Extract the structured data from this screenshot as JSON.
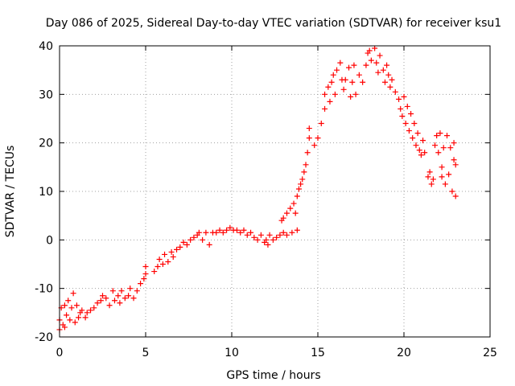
{
  "chart_data": {
    "type": "scatter",
    "title": "Day 086 of 2025, Sidereal Day-to-day VTEC variation (SDTVAR) for receiver ksu1",
    "xlabel": "GPS time / hours",
    "ylabel": "SDTVAR / TECUs",
    "xlim": [
      0,
      25
    ],
    "ylim": [
      -20,
      40
    ],
    "x_ticks": [
      0,
      5,
      10,
      15,
      20,
      25
    ],
    "y_ticks": [
      -20,
      -10,
      0,
      10,
      20,
      30,
      40
    ],
    "x_tick_labels": [
      "0",
      "5",
      "10",
      "15",
      "20",
      "25"
    ],
    "y_tick_labels": [
      "-20",
      "-10",
      "0",
      "10",
      "20",
      "30",
      "40"
    ],
    "grid": true,
    "marker": "+",
    "color": "#ff0000",
    "series": [
      {
        "name": "SDTVAR",
        "points": [
          [
            0.0,
            -16.5
          ],
          [
            0.0,
            -18.5
          ],
          [
            0.1,
            -14.0
          ],
          [
            0.2,
            -17.5
          ],
          [
            0.3,
            -13.5
          ],
          [
            0.3,
            -18.0
          ],
          [
            0.4,
            -15.5
          ],
          [
            0.5,
            -12.5
          ],
          [
            0.6,
            -16.5
          ],
          [
            0.7,
            -14.0
          ],
          [
            0.8,
            -11.0
          ],
          [
            0.9,
            -17.0
          ],
          [
            1.0,
            -13.5
          ],
          [
            1.1,
            -16.0
          ],
          [
            1.2,
            -15.0
          ],
          [
            1.3,
            -14.5
          ],
          [
            1.5,
            -16.0
          ],
          [
            1.6,
            -15.0
          ],
          [
            1.8,
            -14.5
          ],
          [
            2.0,
            -14.0
          ],
          [
            2.2,
            -13.0
          ],
          [
            2.4,
            -12.5
          ],
          [
            2.5,
            -11.5
          ],
          [
            2.7,
            -12.0
          ],
          [
            2.9,
            -13.5
          ],
          [
            3.1,
            -10.5
          ],
          [
            3.2,
            -12.5
          ],
          [
            3.4,
            -11.5
          ],
          [
            3.5,
            -13.0
          ],
          [
            3.6,
            -10.5
          ],
          [
            3.8,
            -12.0
          ],
          [
            4.0,
            -11.5
          ],
          [
            4.1,
            -10.0
          ],
          [
            4.3,
            -12.0
          ],
          [
            4.5,
            -10.5
          ],
          [
            4.7,
            -9.0
          ],
          [
            4.9,
            -8.0
          ],
          [
            5.0,
            -7.0
          ],
          [
            5.0,
            -5.5
          ],
          [
            5.5,
            -6.5
          ],
          [
            5.7,
            -5.5
          ],
          [
            5.8,
            -4.0
          ],
          [
            6.0,
            -5.0
          ],
          [
            6.1,
            -3.0
          ],
          [
            6.3,
            -4.5
          ],
          [
            6.5,
            -2.5
          ],
          [
            6.6,
            -3.5
          ],
          [
            6.8,
            -2.0
          ],
          [
            7.0,
            -1.5
          ],
          [
            7.2,
            -0.5
          ],
          [
            7.4,
            -1.0
          ],
          [
            7.6,
            0.0
          ],
          [
            7.8,
            0.5
          ],
          [
            8.0,
            1.0
          ],
          [
            8.1,
            1.5
          ],
          [
            8.3,
            0.0
          ],
          [
            8.5,
            1.5
          ],
          [
            8.7,
            -1.0
          ],
          [
            8.9,
            1.5
          ],
          [
            9.1,
            1.5
          ],
          [
            9.3,
            2.0
          ],
          [
            9.5,
            1.5
          ],
          [
            9.7,
            2.0
          ],
          [
            9.9,
            2.5
          ],
          [
            10.1,
            2.0
          ],
          [
            10.3,
            2.0
          ],
          [
            10.5,
            1.5
          ],
          [
            10.7,
            2.0
          ],
          [
            10.9,
            1.0
          ],
          [
            11.1,
            1.5
          ],
          [
            11.3,
            0.5
          ],
          [
            11.5,
            0.0
          ],
          [
            11.7,
            1.0
          ],
          [
            11.9,
            -0.5
          ],
          [
            12.0,
            0.0
          ],
          [
            12.1,
            -1.0
          ],
          [
            12.2,
            1.0
          ],
          [
            12.4,
            0.0
          ],
          [
            12.6,
            0.5
          ],
          [
            12.8,
            1.0
          ],
          [
            13.0,
            1.5
          ],
          [
            13.2,
            1.0
          ],
          [
            13.5,
            1.5
          ],
          [
            13.8,
            2.0
          ],
          [
            12.9,
            4.0
          ],
          [
            13.0,
            4.5
          ],
          [
            13.2,
            5.5
          ],
          [
            13.4,
            6.5
          ],
          [
            13.6,
            7.5
          ],
          [
            13.7,
            5.5
          ],
          [
            13.8,
            9.0
          ],
          [
            13.9,
            10.5
          ],
          [
            14.0,
            11.5
          ],
          [
            14.1,
            12.5
          ],
          [
            14.2,
            14.0
          ],
          [
            14.3,
            15.5
          ],
          [
            14.4,
            18.0
          ],
          [
            14.5,
            21.0
          ],
          [
            14.5,
            23.0
          ],
          [
            14.8,
            19.5
          ],
          [
            15.0,
            21.0
          ],
          [
            15.2,
            24.0
          ],
          [
            15.4,
            27.0
          ],
          [
            15.4,
            30.0
          ],
          [
            15.6,
            31.5
          ],
          [
            15.7,
            28.5
          ],
          [
            15.8,
            32.5
          ],
          [
            15.9,
            34.0
          ],
          [
            16.0,
            30.0
          ],
          [
            16.1,
            35.0
          ],
          [
            16.3,
            36.5
          ],
          [
            16.4,
            33.0
          ],
          [
            16.5,
            31.0
          ],
          [
            16.6,
            33.0
          ],
          [
            16.8,
            35.5
          ],
          [
            16.9,
            29.5
          ],
          [
            17.0,
            32.5
          ],
          [
            17.1,
            36.0
          ],
          [
            17.2,
            30.0
          ],
          [
            17.4,
            34.0
          ],
          [
            17.6,
            32.5
          ],
          [
            17.8,
            36.0
          ],
          [
            17.9,
            38.5
          ],
          [
            18.0,
            39.0
          ],
          [
            18.1,
            37.0
          ],
          [
            18.3,
            39.5
          ],
          [
            18.4,
            36.5
          ],
          [
            18.5,
            34.5
          ],
          [
            18.6,
            38.0
          ],
          [
            18.8,
            35.0
          ],
          [
            18.9,
            32.5
          ],
          [
            19.0,
            36.0
          ],
          [
            19.1,
            34.0
          ],
          [
            19.2,
            31.5
          ],
          [
            19.3,
            33.0
          ],
          [
            19.5,
            30.5
          ],
          [
            19.7,
            29.0
          ],
          [
            19.8,
            27.0
          ],
          [
            19.9,
            25.5
          ],
          [
            20.0,
            29.5
          ],
          [
            20.1,
            24.0
          ],
          [
            20.2,
            27.5
          ],
          [
            20.3,
            22.5
          ],
          [
            20.4,
            26.0
          ],
          [
            20.5,
            21.0
          ],
          [
            20.6,
            24.0
          ],
          [
            20.7,
            19.5
          ],
          [
            20.8,
            22.0
          ],
          [
            20.9,
            18.5
          ],
          [
            21.0,
            17.5
          ],
          [
            21.1,
            20.5
          ],
          [
            21.2,
            18.0
          ],
          [
            21.4,
            13.0
          ],
          [
            21.5,
            14.0
          ],
          [
            21.6,
            11.5
          ],
          [
            21.7,
            12.5
          ],
          [
            21.8,
            19.5
          ],
          [
            21.9,
            21.5
          ],
          [
            22.0,
            18.0
          ],
          [
            22.1,
            22.0
          ],
          [
            22.2,
            13.0
          ],
          [
            22.2,
            15.0
          ],
          [
            22.3,
            19.0
          ],
          [
            22.4,
            11.5
          ],
          [
            22.5,
            21.5
          ],
          [
            22.6,
            13.5
          ],
          [
            22.7,
            19.0
          ],
          [
            22.8,
            10.0
          ],
          [
            22.9,
            16.5
          ],
          [
            22.9,
            20.0
          ],
          [
            23.0,
            9.0
          ],
          [
            23.0,
            15.5
          ]
        ]
      }
    ]
  }
}
